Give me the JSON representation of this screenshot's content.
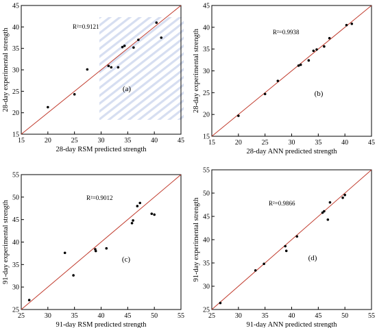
{
  "colors": {
    "fit_line": "#c0392b",
    "point": "#000000",
    "frame": "#000000",
    "hatch": "#cfd8ee"
  },
  "chart_data": [
    {
      "type": "scatter",
      "panel": "(a)",
      "xlabel": "28-day RSM predicted strength",
      "ylabel": "28-day experimental strength",
      "annotation": "R²=0.9121",
      "xlim": [
        15,
        45
      ],
      "ylim": [
        15,
        45
      ],
      "xticks": [
        "15",
        "20",
        "25",
        "30",
        "35",
        "40",
        "45"
      ],
      "yticks": [
        "15",
        "20",
        "25",
        "30",
        "35",
        "40",
        "45"
      ],
      "fit_line": [
        [
          15,
          15
        ],
        [
          45,
          45
        ]
      ],
      "points": [
        [
          20,
          21.3
        ],
        [
          25,
          24.3
        ],
        [
          27.4,
          30.1
        ],
        [
          31.4,
          30.9
        ],
        [
          31.9,
          30.6
        ],
        [
          33.2,
          30.6
        ],
        [
          34,
          35.3
        ],
        [
          34.4,
          35.6
        ],
        [
          36.1,
          35.2
        ],
        [
          37,
          37
        ],
        [
          40.4,
          41
        ],
        [
          41.3,
          37.5
        ]
      ]
    },
    {
      "type": "scatter",
      "panel": "(b)",
      "xlabel": "28-day ANN predicted strength",
      "ylabel": "28-day experimental strength",
      "annotation": "R²=0.9938",
      "xlim": [
        15,
        45
      ],
      "ylim": [
        15,
        45
      ],
      "xticks": [
        "15",
        "20",
        "25",
        "30",
        "35",
        "40",
        "45"
      ],
      "yticks": [
        "15",
        "20",
        "25",
        "30",
        "35",
        "40",
        "45"
      ],
      "fit_line": [
        [
          15,
          15
        ],
        [
          45,
          45
        ]
      ],
      "points": [
        [
          20,
          19.7
        ],
        [
          25,
          24.7
        ],
        [
          27.4,
          27.7
        ],
        [
          31.3,
          31.2
        ],
        [
          31.7,
          31.4
        ],
        [
          33.2,
          32.4
        ],
        [
          34.1,
          34.6
        ],
        [
          34.7,
          34.9
        ],
        [
          36.1,
          35.6
        ],
        [
          37.1,
          37.5
        ],
        [
          40.3,
          40.5
        ],
        [
          41.3,
          40.8
        ]
      ]
    },
    {
      "type": "scatter",
      "panel": "(c)",
      "xlabel": "91-day RSM predicted strength",
      "ylabel": "91-day experimental strength",
      "annotation": "R²=0.9012",
      "xlim": [
        25,
        55
      ],
      "ylim": [
        25,
        55
      ],
      "xticks": [
        "25",
        "30",
        "35",
        "40",
        "45",
        "50",
        "55"
      ],
      "yticks": [
        "25",
        "30",
        "35",
        "40",
        "45",
        "50",
        "55"
      ],
      "fit_line": [
        [
          25,
          25
        ],
        [
          55,
          55
        ]
      ],
      "points": [
        [
          26.5,
          27.1
        ],
        [
          33.2,
          37.6
        ],
        [
          34.8,
          32.6
        ],
        [
          38.9,
          38.4
        ],
        [
          39,
          38
        ],
        [
          41,
          38.6
        ],
        [
          45.8,
          44.2
        ],
        [
          46,
          44.8
        ],
        [
          46.8,
          48
        ],
        [
          47.3,
          48.7
        ],
        [
          49.5,
          46.3
        ],
        [
          50,
          46.1
        ]
      ]
    },
    {
      "type": "scatter",
      "panel": "(d)",
      "xlabel": "91-day ANN predicted strength",
      "ylabel": "91-day experimental strength",
      "annotation": "R²=0.9866",
      "xlim": [
        25,
        55
      ],
      "ylim": [
        25,
        55
      ],
      "xticks": [
        "25",
        "30",
        "35",
        "40",
        "45",
        "50",
        "55"
      ],
      "yticks": [
        "25",
        "30",
        "35",
        "40",
        "45",
        "50",
        "55"
      ],
      "fit_line": [
        [
          25,
          25
        ],
        [
          55,
          55
        ]
      ],
      "points": [
        [
          26.6,
          26.4
        ],
        [
          33.2,
          33.4
        ],
        [
          34.8,
          34.8
        ],
        [
          38.8,
          38.6
        ],
        [
          39,
          37.6
        ],
        [
          41,
          40.7
        ],
        [
          45.8,
          45.8
        ],
        [
          46.1,
          46.1
        ],
        [
          46.8,
          44.3
        ],
        [
          47.2,
          48
        ],
        [
          49.6,
          49
        ],
        [
          50,
          49.6
        ]
      ]
    }
  ]
}
